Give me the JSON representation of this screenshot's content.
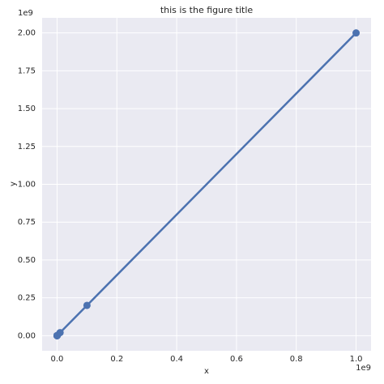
{
  "chart_data": {
    "type": "line",
    "title": "this is the figure title",
    "x_label": "x",
    "y_label": "y",
    "x_offset_label": "1e9",
    "y_offset_label": "1e9",
    "x": [
      1,
      10,
      100,
      1000,
      10000,
      100000,
      1000000,
      10000000,
      100000000,
      1000000000
    ],
    "series": [
      {
        "name": "y",
        "color": "#4c72b0",
        "values": [
          2,
          20,
          200,
          2000,
          20000,
          200000,
          2000000,
          20000000,
          200000000,
          2000000000
        ]
      }
    ],
    "xlim": [
      -50000000,
      1050000000
    ],
    "ylim": [
      -100000000,
      2100000000
    ],
    "xticks": [
      {
        "value": 0,
        "label": "0.0"
      },
      {
        "value": 200000000,
        "label": "0.2"
      },
      {
        "value": 400000000,
        "label": "0.4"
      },
      {
        "value": 600000000,
        "label": "0.6"
      },
      {
        "value": 800000000,
        "label": "0.8"
      },
      {
        "value": 1000000000,
        "label": "1.0"
      }
    ],
    "yticks": [
      {
        "value": 0,
        "label": "0.00"
      },
      {
        "value": 250000000,
        "label": "0.25"
      },
      {
        "value": 500000000,
        "label": "0.50"
      },
      {
        "value": 750000000,
        "label": "0.75"
      },
      {
        "value": 1000000000,
        "label": "1.00"
      },
      {
        "value": 1250000000,
        "label": "1.25"
      },
      {
        "value": 1500000000,
        "label": "1.50"
      },
      {
        "value": 1750000000,
        "label": "1.75"
      },
      {
        "value": 2000000000,
        "label": "2.00"
      }
    ],
    "grid": true
  }
}
